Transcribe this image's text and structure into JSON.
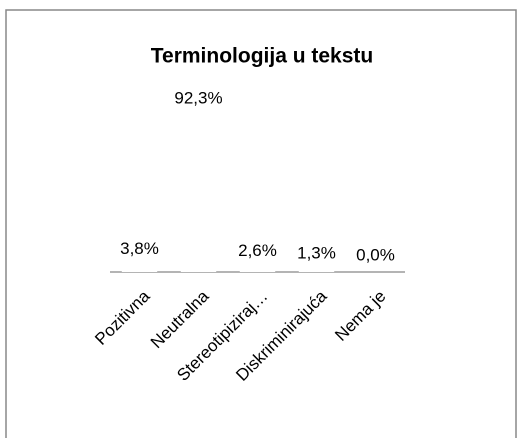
{
  "chart_data": {
    "type": "bar",
    "title": "Terminologija u tekstu",
    "categories": [
      "Pozitivna",
      "Neutralna",
      "Stereotipiziraj…",
      "Diskriminirajuća",
      "Nema je"
    ],
    "values": [
      3.8,
      92.3,
      2.6,
      1.3,
      0.0
    ],
    "value_labels": [
      "3,8%",
      "92,3%",
      "2,6%",
      "1,3%",
      "0,0%"
    ],
    "color": "#ffffff",
    "ylim": [
      0,
      100
    ]
  }
}
